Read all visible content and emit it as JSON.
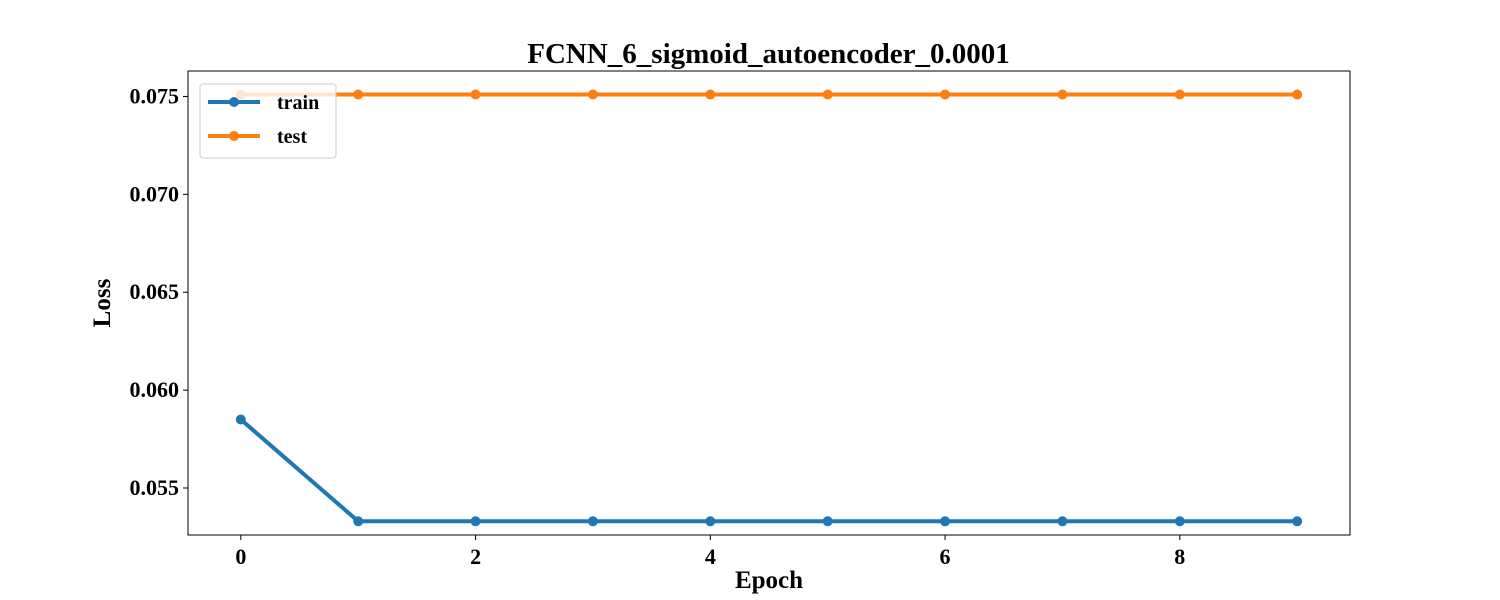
{
  "chart_data": {
    "type": "line",
    "title": "FCNN_6_sigmoid_autoencoder_0.0001",
    "xlabel": "Epoch",
    "ylabel": "Loss",
    "x": [
      0,
      1,
      2,
      3,
      4,
      5,
      6,
      7,
      8,
      9
    ],
    "xticks": [
      0,
      2,
      4,
      6,
      8
    ],
    "yticks": [
      0.055,
      0.06,
      0.065,
      0.07,
      0.075
    ],
    "ytick_labels": [
      "0.055",
      "0.060",
      "0.065",
      "0.070",
      "0.075"
    ],
    "xlim": [
      -0.45,
      9.45
    ],
    "ylim": [
      0.0526,
      0.0763
    ],
    "grid": false,
    "legend": "top-left",
    "series": [
      {
        "name": "train",
        "color": "#1f77b4",
        "values": [
          0.0585,
          0.0533,
          0.0533,
          0.0533,
          0.0533,
          0.0533,
          0.0533,
          0.0533,
          0.0533,
          0.0533
        ]
      },
      {
        "name": "test",
        "color": "#ff7f0e",
        "values": [
          0.0751,
          0.0751,
          0.0751,
          0.0751,
          0.0751,
          0.0751,
          0.0751,
          0.0751,
          0.0751,
          0.0751
        ]
      }
    ]
  }
}
